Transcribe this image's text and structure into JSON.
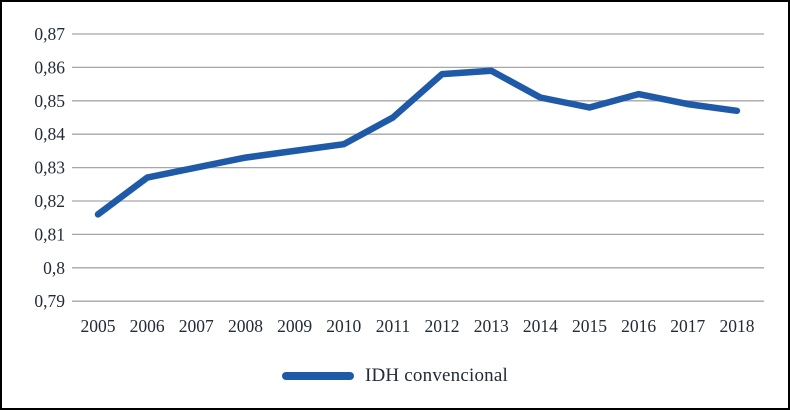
{
  "chart_data": {
    "type": "line",
    "title": "",
    "xlabel": "",
    "ylabel": "",
    "categories": [
      "2005",
      "2006",
      "2007",
      "2008",
      "2009",
      "2010",
      "2011",
      "2012",
      "2013",
      "2014",
      "2015",
      "2016",
      "2017",
      "2018"
    ],
    "series": [
      {
        "name": "IDH convencional",
        "values": [
          0.816,
          0.827,
          0.83,
          0.833,
          0.835,
          0.837,
          0.845,
          0.858,
          0.859,
          0.851,
          0.848,
          0.852,
          0.849,
          0.847
        ]
      }
    ],
    "ylim": [
      0.79,
      0.87
    ],
    "yticks": [
      {
        "value": 0.87,
        "label": "0,87"
      },
      {
        "value": 0.86,
        "label": "0,86"
      },
      {
        "value": 0.85,
        "label": "0,85"
      },
      {
        "value": 0.84,
        "label": "0,84"
      },
      {
        "value": 0.83,
        "label": "0,83"
      },
      {
        "value": 0.82,
        "label": "0,82"
      },
      {
        "value": 0.81,
        "label": "0,81"
      },
      {
        "value": 0.8,
        "label": "0,8"
      },
      {
        "value": 0.79,
        "label": "0,79"
      }
    ],
    "grid": true,
    "legend_position": "bottom",
    "decimal_separator": ","
  },
  "colors": {
    "line": "#1e5aa8",
    "gridline": "#a6a6a6",
    "text": "#232b36",
    "frame": "#000000",
    "background": "#ffffff"
  }
}
